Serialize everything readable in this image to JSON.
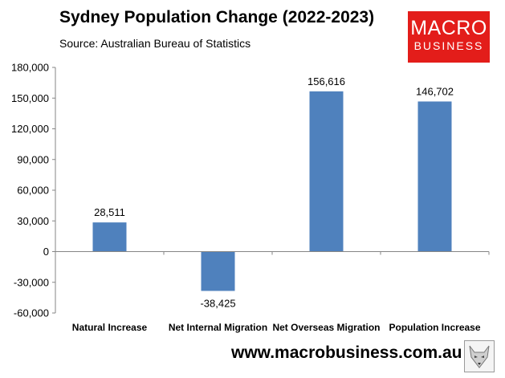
{
  "header": {
    "title": "Sydney Population Change (2022-2023)",
    "subtitle": "Source: Australian Bureau of Statistics"
  },
  "logo": {
    "line1": "MACRO",
    "line2": "BUSINESS",
    "color": "#e31d1a"
  },
  "footer": {
    "url": "www.macrobusiness.com.au",
    "icon": "fox-head-icon"
  },
  "chart_data": {
    "type": "bar",
    "categories": [
      "Natural Increase",
      "Net Internal Migration",
      "Net Overseas Migration",
      "Population Increase"
    ],
    "values": [
      28511,
      -38425,
      156616,
      146702
    ],
    "data_labels": [
      "28,511",
      "-38,425",
      "156,616",
      "146,702"
    ],
    "yticks": [
      180000,
      150000,
      120000,
      90000,
      60000,
      30000,
      0,
      -30000,
      -60000
    ],
    "ytick_labels": [
      "180,000",
      "150,000",
      "120,000",
      "90,000",
      "60,000",
      "30,000",
      "0",
      "-30,000",
      "-60,000"
    ],
    "ylim": [
      -60000,
      180000
    ],
    "bar_color": "#4f81bd",
    "grid": false,
    "legend": "none"
  }
}
